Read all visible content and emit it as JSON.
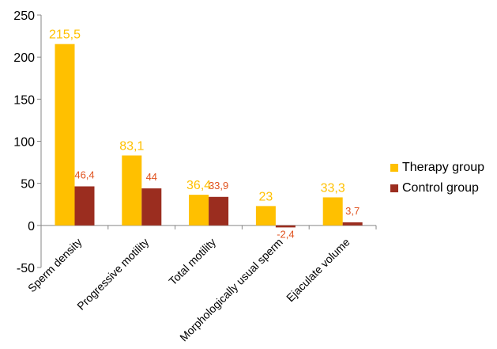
{
  "chart_data": {
    "type": "bar",
    "categories": [
      "Sperm density",
      "Progressive motility",
      "Total motility",
      "Morphologically usual sperm",
      "Ejaculate volume"
    ],
    "series": [
      {
        "name": "Therapy group",
        "values": [
          215.5,
          83.1,
          36.4,
          23,
          33.3
        ],
        "labels": [
          "215,5",
          "83,1",
          "36,4",
          "23",
          "33,3"
        ]
      },
      {
        "name": "Control group",
        "values": [
          46.4,
          44,
          33.9,
          -2.4,
          3.7
        ],
        "labels": [
          "46,4",
          "44",
          "33,9",
          "-2,4",
          "3,7"
        ]
      }
    ],
    "yticks": [
      -50,
      0,
      50,
      100,
      150,
      200,
      250
    ],
    "ylim": [
      -50,
      250
    ],
    "grid": false,
    "legend_position": "right",
    "colors": {
      "therapy": "#FFC000",
      "control": "#9B2D1F",
      "therapy_label": "#FFC000",
      "control_label": "#E0521E",
      "axis": "#868686"
    }
  }
}
